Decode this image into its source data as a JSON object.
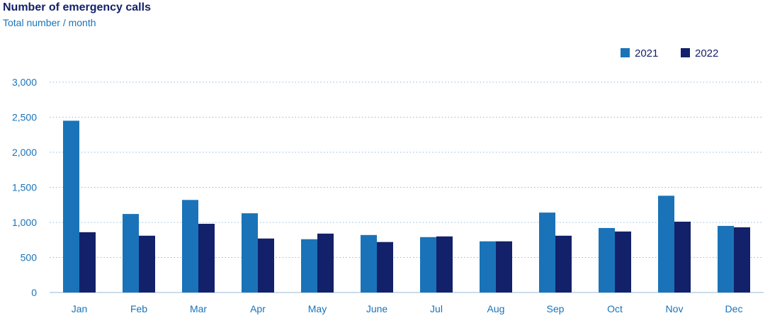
{
  "chart_data": {
    "type": "bar",
    "title": "Number of emergency calls",
    "subtitle": "Total number / month",
    "xlabel": "",
    "ylabel": "",
    "categories": [
      "Jan",
      "Feb",
      "Mar",
      "Apr",
      "May",
      "June",
      "Jul",
      "Aug",
      "Sep",
      "Oct",
      "Nov",
      "Dec"
    ],
    "series": [
      {
        "name": "2021",
        "color": "#1a73b8",
        "values": [
          2450,
          1120,
          1320,
          1130,
          760,
          820,
          790,
          730,
          1140,
          920,
          1380,
          950
        ]
      },
      {
        "name": "2022",
        "color": "#13216a",
        "values": [
          860,
          810,
          980,
          770,
          840,
          720,
          800,
          730,
          810,
          870,
          1010,
          930
        ]
      }
    ],
    "ylim": [
      0,
      3000
    ],
    "yticks": [
      0,
      500,
      1000,
      1500,
      2000,
      2500,
      3000
    ],
    "ytick_labels": [
      "0",
      "500",
      "1,000",
      "1,500",
      "2,000",
      "2,500",
      "3,000"
    ],
    "grid": "horizontal dotted",
    "legend_position": "top-right"
  }
}
